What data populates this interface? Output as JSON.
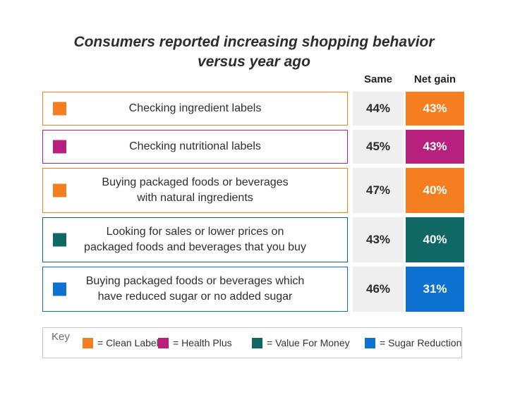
{
  "title": {
    "line1": "Consumers reported increasing shopping behavior",
    "line2": "versus year ago"
  },
  "columns": {
    "same": "Same",
    "net_gain": "Net gain"
  },
  "rows": [
    {
      "label_line1": "Checking ingredient labels",
      "label_line2": "",
      "category": "Clean Label",
      "color": "#F57E20",
      "same": "44%",
      "net_gain": "43%"
    },
    {
      "label_line1": "Checking nutritional labels",
      "label_line2": "",
      "category": "Health Plus",
      "color": "#B8207E",
      "same": "45%",
      "net_gain": "43%"
    },
    {
      "label_line1": "Buying packaged foods or beverages",
      "label_line2": "with natural ingredients",
      "category": "Clean Label",
      "color": "#F57E20",
      "same": "47%",
      "net_gain": "40%"
    },
    {
      "label_line1": "Looking for sales or lower prices on",
      "label_line2": "packaged foods and beverages that you buy",
      "category": "Value For Money",
      "color": "#0F6864",
      "same": "43%",
      "net_gain": "40%"
    },
    {
      "label_line1": "Buying packaged foods or beverages which",
      "label_line2": "have reduced sugar or no added sugar",
      "category": "Sugar Reduction",
      "color": "#0E72D2",
      "same": "46%",
      "net_gain": "31%"
    }
  ],
  "key": {
    "label": "Key",
    "items": [
      {
        "label": "= Clean Label",
        "color": "#F57E20"
      },
      {
        "label": "= Health Plus",
        "color": "#B8207E"
      },
      {
        "label": "= Value For Money",
        "color": "#0F6864"
      },
      {
        "label": "= Sugar Reduction",
        "color": "#0E72D2"
      }
    ]
  },
  "chart_data": {
    "type": "table",
    "title": "Consumers reported increasing shopping behavior versus year ago",
    "columns": [
      "Behavior",
      "Same",
      "Net gain"
    ],
    "rows": [
      {
        "behavior": "Checking ingredient labels",
        "category": "Clean Label",
        "same_pct": 44,
        "net_gain_pct": 43
      },
      {
        "behavior": "Checking nutritional labels",
        "category": "Health Plus",
        "same_pct": 45,
        "net_gain_pct": 43
      },
      {
        "behavior": "Buying packaged foods or beverages with natural ingredients",
        "category": "Clean Label",
        "same_pct": 47,
        "net_gain_pct": 40
      },
      {
        "behavior": "Looking for sales or lower prices on packaged foods and beverages that you buy",
        "category": "Value For Money",
        "same_pct": 43,
        "net_gain_pct": 40
      },
      {
        "behavior": "Buying packaged foods or beverages which have reduced sugar or no added sugar",
        "category": "Sugar Reduction",
        "same_pct": 46,
        "net_gain_pct": 31
      }
    ],
    "legend": [
      {
        "name": "Clean Label",
        "color": "#F57E20"
      },
      {
        "name": "Health Plus",
        "color": "#B8207E"
      },
      {
        "name": "Value For Money",
        "color": "#0F6864"
      },
      {
        "name": "Sugar Reduction",
        "color": "#0E72D2"
      }
    ],
    "legend_position": "bottom"
  }
}
